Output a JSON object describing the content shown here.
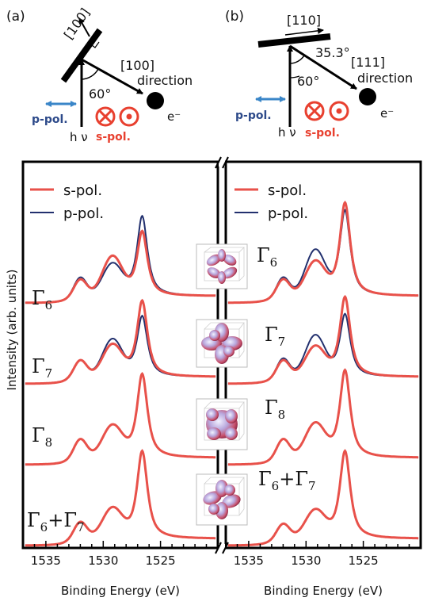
{
  "panel_a": {
    "label": "(a)",
    "surface_label": "[100]",
    "direction_label": "[100]",
    "direction_word": "direction",
    "angle": "60°",
    "electron": "e⁻",
    "ppol": "p-pol.",
    "spol": "s-pol.",
    "hv": "h ν"
  },
  "panel_b": {
    "label": "(b)",
    "surface_label": "[110]",
    "direction_label": "[111]",
    "direction_word": "direction",
    "angle": "60°",
    "angle2": "35.3°",
    "electron": "e⁻",
    "ppol": "p-pol.",
    "spol": "s-pol.",
    "hv": "h ν"
  },
  "colors": {
    "s_pol": "#e8514a",
    "p_pol": "#22306e",
    "red_label": "#e8402f",
    "blue_label": "#2d4a8a",
    "pol_arrow": "#3a86c8"
  },
  "chart_data": [
    {
      "type": "line",
      "panel": "a",
      "xlabel": "Binding Energy (eV)",
      "ylabel": "Intensity (arb. units)",
      "xlim": [
        1537,
        1520
      ],
      "xticks": [
        1535,
        1530,
        1525
      ],
      "legend": [
        "s-pol.",
        "p-pol."
      ],
      "legend_position": "top-left",
      "curves": [
        {
          "label": "Γ6",
          "label_main": "Γ",
          "label_sub": "6",
          "offset": 3,
          "s_pol": {
            "a1": 0.45,
            "a2": 1.0,
            "a3": 1.7
          },
          "p_pol": {
            "a1": 0.5,
            "a2": 0.8,
            "a3": 2.1
          }
        },
        {
          "label": "Γ7",
          "label_main": "Γ",
          "label_sub": "7",
          "offset": 2,
          "s_pol": {
            "a1": 0.45,
            "a2": 0.8,
            "a3": 2.0
          },
          "p_pol": {
            "a1": 0.45,
            "a2": 0.95,
            "a3": 1.6
          }
        },
        {
          "label": "Γ8",
          "label_main": "Γ",
          "label_sub": "8",
          "offset": 1,
          "s_pol": {
            "a1": 0.5,
            "a2": 0.8,
            "a3": 2.2
          },
          "p_pol": {
            "a1": 0.5,
            "a2": 0.8,
            "a3": 2.2
          }
        },
        {
          "label": "Γ6+Γ7",
          "label_main": "Γ",
          "label_sub": "6",
          "label_plus": "+",
          "label_main2": "Γ",
          "label_sub2": "7",
          "offset": 0,
          "s_pol": {
            "a1": 0.45,
            "a2": 0.75,
            "a3": 2.3
          },
          "p_pol": {
            "a1": 0.45,
            "a2": 0.75,
            "a3": 2.3
          }
        }
      ]
    },
    {
      "type": "line",
      "panel": "b",
      "xlabel": "Binding Energy (eV)",
      "xlim": [
        1537,
        1520
      ],
      "xticks": [
        1535,
        1530,
        1525
      ],
      "legend": [
        "s-pol.",
        "p-pol."
      ],
      "legend_position": "top-left",
      "curves": [
        {
          "label": "Γ6",
          "label_main": "Γ",
          "label_sub": "6",
          "offset": 3,
          "s_pol": {
            "a1": 0.45,
            "a2": 0.85,
            "a3": 2.45
          },
          "p_pol": {
            "a1": 0.5,
            "a2": 1.15,
            "a3": 2.25
          }
        },
        {
          "label": "Γ7",
          "label_main": "Γ",
          "label_sub": "7",
          "offset": 2,
          "s_pol": {
            "a1": 0.45,
            "a2": 0.75,
            "a3": 2.1
          },
          "p_pol": {
            "a1": 0.5,
            "a2": 1.05,
            "a3": 1.65
          }
        },
        {
          "label": "Γ8",
          "label_main": "Γ",
          "label_sub": "8",
          "offset": 1,
          "s_pol": {
            "a1": 0.5,
            "a2": 0.85,
            "a3": 2.3
          },
          "p_pol": {
            "a1": 0.5,
            "a2": 0.85,
            "a3": 2.3
          }
        },
        {
          "label": "Γ6+Γ7",
          "label_main": "Γ",
          "label_sub": "6",
          "label_plus": "+",
          "label_main2": "Γ",
          "label_sub2": "7",
          "offset": 0,
          "s_pol": {
            "a1": 0.4,
            "a2": 0.7,
            "a3": 2.3
          },
          "p_pol": {
            "a1": 0.4,
            "a2": 0.7,
            "a3": 2.3
          }
        }
      ]
    }
  ]
}
